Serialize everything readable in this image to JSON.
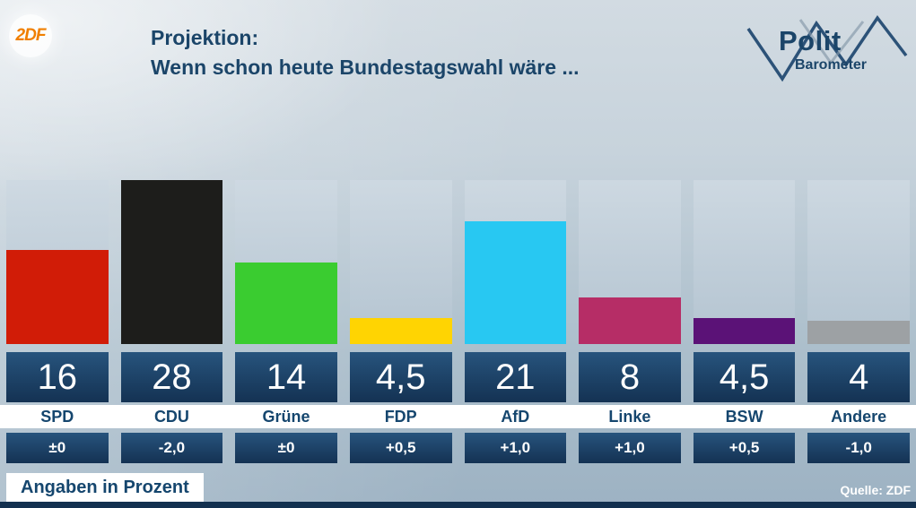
{
  "header": {
    "logo": "2DF",
    "title_line1": "Projektion:",
    "title_line2": "Wenn schon heute Bundestagswahl wäre ...",
    "brand_line1": "Polit",
    "brand_line2": "Barometer"
  },
  "chart_data": {
    "type": "bar",
    "title": "Projektion: Wenn schon heute Bundestagswahl wäre ...",
    "unit": "Prozent",
    "ylim": [
      0,
      28
    ],
    "grid": false,
    "categories": [
      "SPD",
      "CDU",
      "Grüne",
      "FDP",
      "AfD",
      "Linke",
      "BSW",
      "Andere"
    ],
    "values": [
      16,
      28,
      14,
      4.5,
      21,
      8,
      4.5,
      4
    ],
    "value_labels": [
      "16",
      "28",
      "14",
      "4,5",
      "21",
      "8",
      "4,5",
      "4"
    ],
    "changes": [
      "±0",
      "-2,0",
      "±0",
      "+0,5",
      "+1,0",
      "+1,0",
      "+0,5",
      "-1,0"
    ],
    "colors": [
      "#d11c07",
      "#1d1d1b",
      "#3acc30",
      "#ffd402",
      "#28c8f2",
      "#b62d66",
      "#5b1277",
      "#9da1a4"
    ]
  },
  "footer": {
    "note": "Angaben in Prozent",
    "source": "Quelle: ZDF"
  }
}
